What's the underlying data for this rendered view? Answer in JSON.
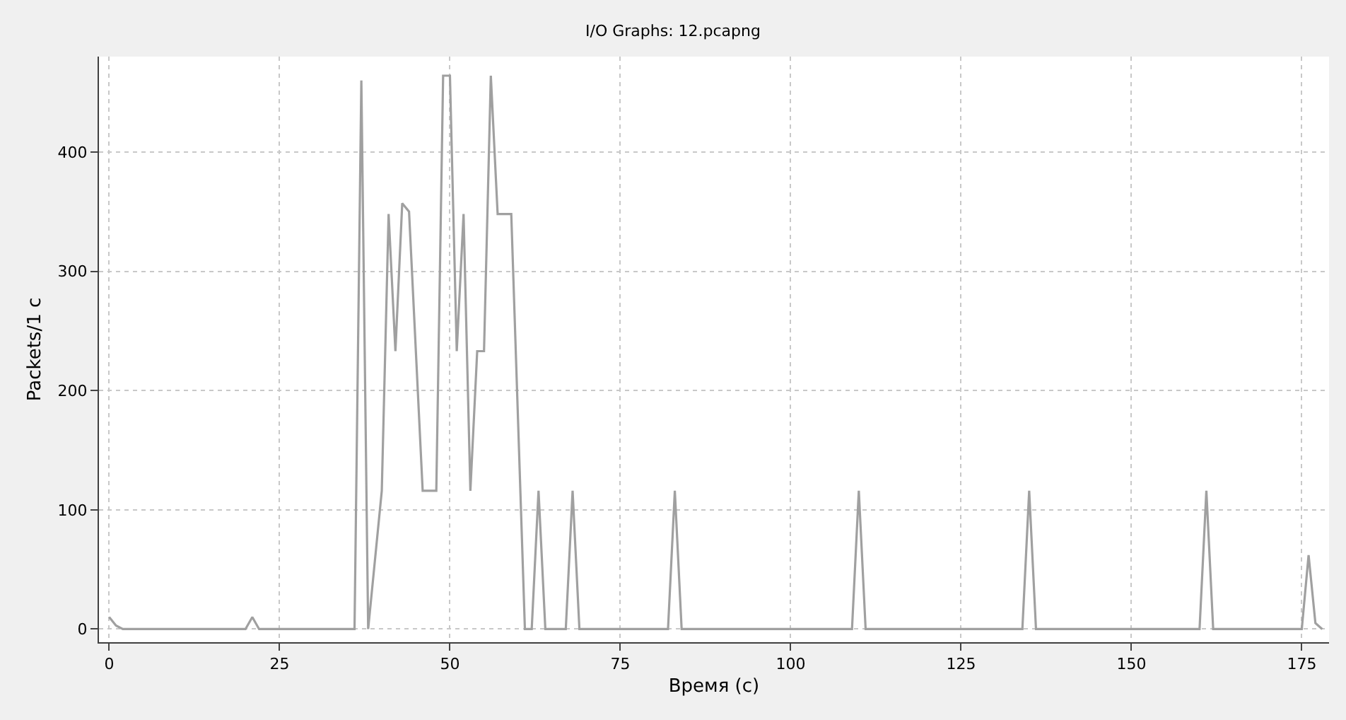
{
  "chart_data": {
    "type": "line",
    "title": "I/O Graphs: 12.pcapng",
    "xlabel": "Время (с)",
    "ylabel": "Packets/1 с",
    "x": [
      0,
      1,
      2,
      20,
      21,
      22,
      36,
      37,
      38,
      40,
      41,
      42,
      43,
      44,
      46,
      48,
      49,
      50,
      51,
      52,
      53,
      54,
      55,
      56,
      57,
      59,
      61,
      62,
      63,
      64,
      67,
      68,
      69,
      82,
      83,
      84,
      109,
      110,
      111,
      134,
      135,
      136,
      160,
      161,
      162,
      175,
      176,
      177,
      178
    ],
    "series": [
      {
        "color": "#a0a0a0",
        "values": [
          10,
          3,
          0,
          0,
          10,
          0,
          0,
          460,
          0,
          116,
          348,
          233,
          357,
          350,
          116,
          116,
          464,
          464,
          233,
          348,
          116,
          233,
          233,
          464,
          348,
          348,
          0,
          0,
          116,
          0,
          0,
          116,
          0,
          0,
          116,
          0,
          0,
          116,
          0,
          0,
          116,
          0,
          0,
          116,
          0,
          0,
          62,
          5,
          0
        ]
      }
    ],
    "xlim": [
      -1.5,
      179
    ],
    "ylim": [
      -11,
      480
    ],
    "xticks": [
      0,
      25,
      50,
      75,
      100,
      125,
      150,
      175
    ],
    "yticks": [
      0,
      100,
      200,
      300,
      400
    ],
    "grid": true,
    "legend": false,
    "marker": "none",
    "line_style": "solid"
  }
}
